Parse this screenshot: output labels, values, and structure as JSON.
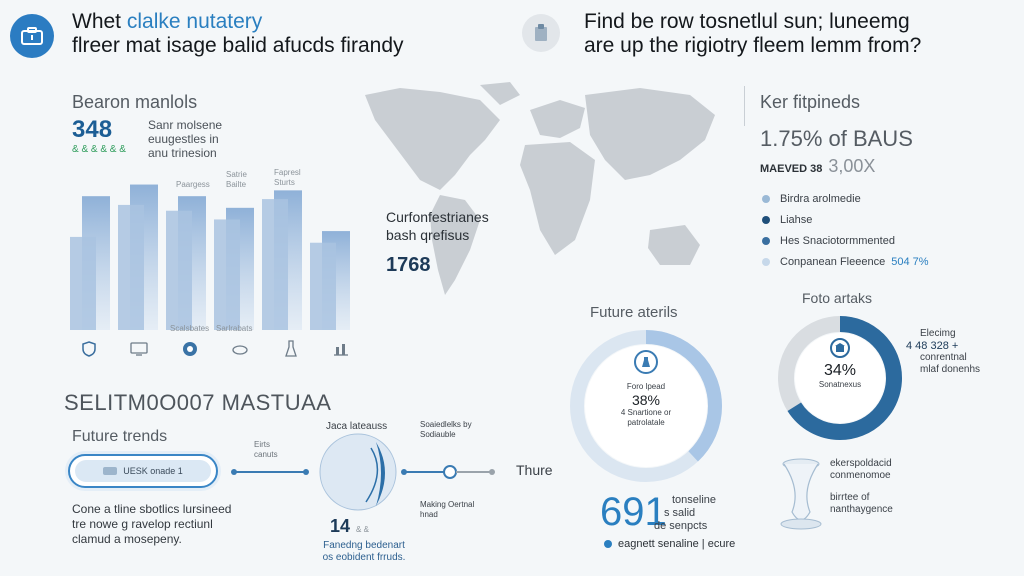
{
  "header": {
    "left_title_line1_prefix": "Whet",
    "left_title_line1_accent": "clalke nutatery",
    "left_title_line2": "flreer mat isage balid afucds firandy",
    "right_title_line1": "Find be row tosnetlul sun; luneemg",
    "right_title_line2": "are up the rigiotry fleem lemm from?"
  },
  "left_panel": {
    "heading": "Bearon manlols",
    "stat_number": "348",
    "stat_sub": "& & & & & &",
    "stat_desc_line1": "Sanr molsene",
    "stat_desc_line2": "euugestles in",
    "stat_desc_line3": "anu trinesion",
    "bar_top_labels": [
      "Paargess",
      "Satrie Bailte",
      "Fapresl Sturts"
    ],
    "bar_bottom_labels": [
      "",
      "",
      "Scalsbates",
      "Sarlrabats",
      "",
      ""
    ]
  },
  "chart_data": {
    "type": "bar",
    "categories": [
      "1",
      "2",
      "3",
      "4",
      "5",
      "6"
    ],
    "series": [
      {
        "values": [
          32,
          43,
          41,
          38,
          45,
          30
        ]
      },
      {
        "values": [
          46,
          50,
          46,
          42,
          48,
          34
        ]
      }
    ],
    "ylim": [
      0,
      55
    ]
  },
  "map_panel": {
    "label_line1": "Curfonfestrianes",
    "label_line2": "bash qrefisus",
    "value": "1768"
  },
  "right_panel": {
    "heading": "Ker fitpineds",
    "stat_line": "1.75% of BAUS",
    "stat2_label": "MAEVED 38",
    "stat2_value": "3,00X",
    "legend": [
      {
        "label": "Birdra arolmedie",
        "color": "#9ab9d6"
      },
      {
        "label": "Liahse",
        "color": "#1f4f7a"
      },
      {
        "label": "Hes Snaciotormmented",
        "color": "#3a6fa0"
      },
      {
        "label": "Conpanean Fleeence",
        "color": "#c6d8ea",
        "value": "504 7%"
      }
    ]
  },
  "bottom_left": {
    "headline": "SELITM0O007 MASTUAA",
    "heading": "Future trends",
    "pill_label": "UESK onade 1",
    "node_labels": [
      "Eirts canuts",
      "Jaca lateauss",
      "Soaiedlelks by Sodiauble",
      "Making Oertnal hnad"
    ],
    "stage_label": "Thure",
    "node_value": "14",
    "node_value_suffix": "& &",
    "node_caption_line1": "Fanedng bedenart",
    "node_caption_line2": "os eobident frruds.",
    "desc_line1": "Cone a tline sbotlics lursineed",
    "desc_line2": "tre nowe g ravelop rectiunl",
    "desc_line3": "clamud a mosepeny."
  },
  "donut_left": {
    "heading": "Future aterils",
    "center_label": "Foro lpead",
    "center_value": "38%",
    "center_sub": "4 Snartione or",
    "center_sub2": "patrolatale",
    "fraction": 0.38,
    "color": "#a9c6e6"
  },
  "donut_right": {
    "heading": "Foto artaks",
    "center_value": "34%",
    "center_sub": "Sonatnexus",
    "fraction": 0.66,
    "color": "#2c6a9e",
    "side_label_1": "Elecimg",
    "side_label_2": "4 48 328 +",
    "side_label_3": "conrentnal",
    "side_label_4": "mlaf donenhs"
  },
  "bottom_mid": {
    "big_number": "691",
    "desc_line1": "tonseline",
    "desc_line2": "s salid",
    "desc_line3": "de senpcts",
    "caption": "eagnett senaline | ecure"
  },
  "bottom_right": {
    "text_line1": "ekerspoldacid",
    "text_line2": "conmenomoe",
    "text_line3": "birrtee of",
    "text_line4": "nanthaygence"
  }
}
